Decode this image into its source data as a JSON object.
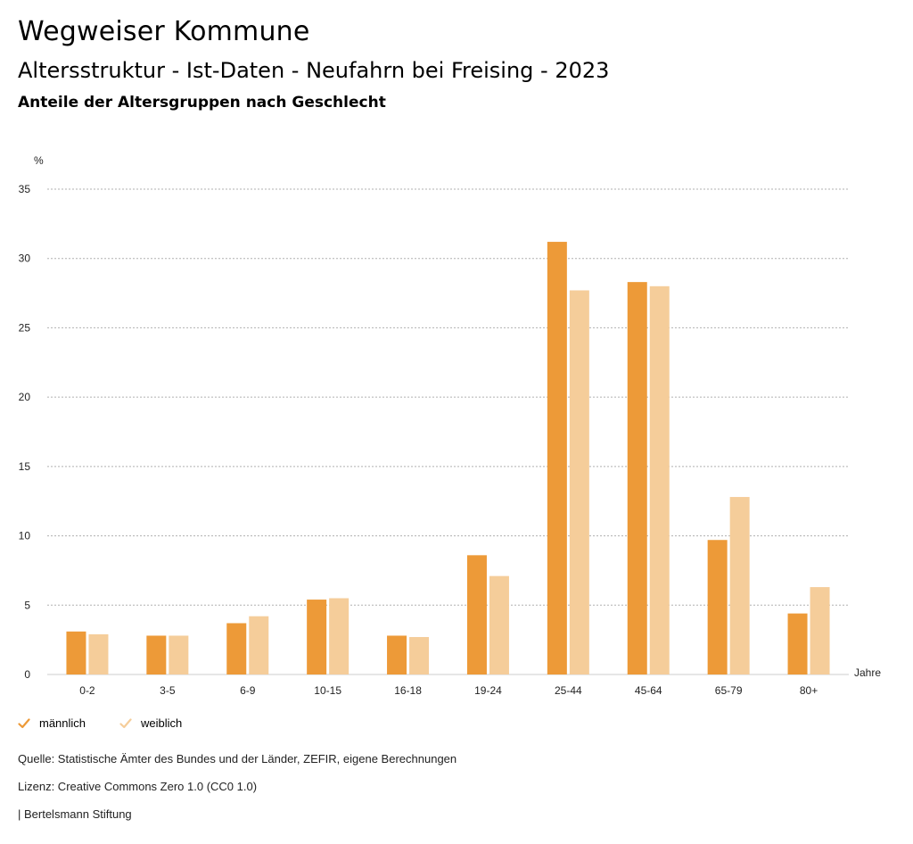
{
  "header": {
    "title": "Wegweiser Kommune",
    "subtitle": "Altersstruktur - Ist-Daten - Neufahrn bei Freising - 2023",
    "subsubtitle": "Anteile der Altersgruppen nach Geschlecht"
  },
  "colors": {
    "male": "#ED9A38",
    "female": "#F5CD9A",
    "grid": "#b0b0b0"
  },
  "chart_data": {
    "type": "bar",
    "ylabel": "%",
    "xlabel": "Jahre",
    "ylim": [
      0,
      35
    ],
    "yticks": [
      0,
      5,
      10,
      15,
      20,
      25,
      30,
      35
    ],
    "grid": true,
    "legend_position": "bottom-left",
    "categories": [
      "0-2",
      "3-5",
      "6-9",
      "10-15",
      "16-18",
      "19-24",
      "25-44",
      "45-64",
      "65-79",
      "80+"
    ],
    "series": [
      {
        "name": "männlich",
        "values": [
          3.1,
          2.8,
          3.7,
          5.4,
          2.8,
          8.6,
          31.2,
          28.3,
          9.7,
          4.4
        ]
      },
      {
        "name": "weiblich",
        "values": [
          2.9,
          2.8,
          4.2,
          5.5,
          2.7,
          7.1,
          27.7,
          28.0,
          12.8,
          6.3
        ]
      }
    ]
  },
  "legend": {
    "male_label": "männlich",
    "female_label": "weiblich"
  },
  "footer": {
    "source": "Quelle: Statistische Ämter des Bundes und der Länder, ZEFIR, eigene Berechnungen",
    "license": "Lizenz: Creative Commons Zero 1.0 (CC0 1.0)",
    "publisher": "| Bertelsmann Stiftung"
  }
}
